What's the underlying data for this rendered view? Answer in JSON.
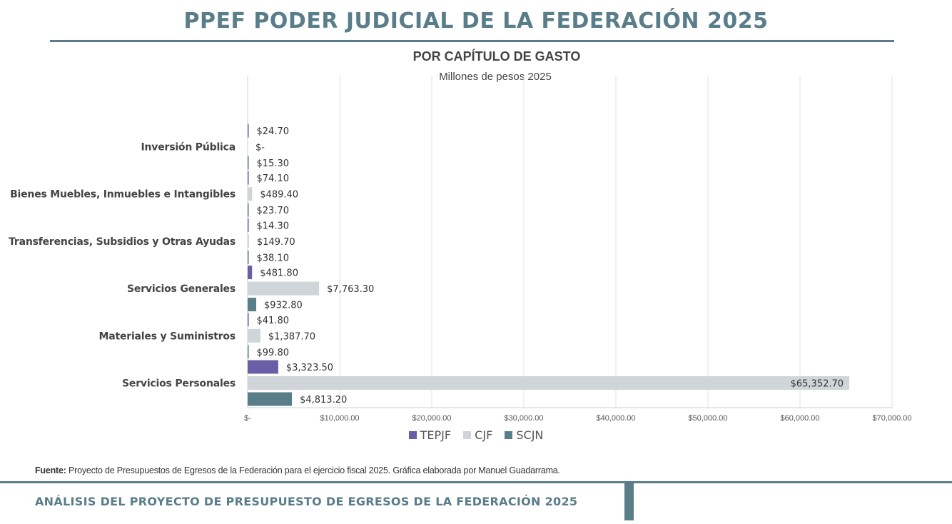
{
  "header": {
    "title": "PPEF PODER JUDICIAL DE LA FEDERACIÓN 2025"
  },
  "chart_data": {
    "type": "bar",
    "orientation": "horizontal",
    "title": "POR CAPÍTULO DE GASTO",
    "subtitle": "Millones de pesos 2025",
    "categories": [
      "Inversión Pública",
      "Bienes Muebles, Inmuebles e Intangibles",
      "Transferencias, Subsidios y Otras Ayudas",
      "Servicios Generales",
      "Materiales y Suministros",
      "Servicios Personales"
    ],
    "series": [
      {
        "name": "TEPJF",
        "color": "#6a5ea6",
        "values": [
          24.7,
          74.1,
          14.3,
          481.8,
          41.8,
          3323.5
        ],
        "labels": [
          "$24.70",
          "$74.10",
          "$14.30",
          "$481.80",
          "$41.80",
          "$3,323.50"
        ]
      },
      {
        "name": "CJF",
        "color": "#cfd5d8",
        "values": [
          0,
          489.4,
          149.7,
          7763.3,
          1387.7,
          65352.7
        ],
        "labels": [
          "$-",
          "$489.40",
          "$149.70",
          "$7,763.30",
          "$1,387.70",
          "$65,352.70"
        ]
      },
      {
        "name": "SCJN",
        "color": "#5a7d8a",
        "values": [
          15.3,
          23.7,
          38.1,
          932.8,
          99.8,
          4813.2
        ],
        "labels": [
          "$15.30",
          "$23.70",
          "$38.10",
          "$932.80",
          "$99.80",
          "$4,813.20"
        ]
      }
    ],
    "xlim": [
      0,
      70000
    ],
    "xticks": [
      0,
      10000,
      20000,
      30000,
      40000,
      50000,
      60000,
      70000
    ],
    "xtick_labels": [
      "$-",
      "$10,000.00",
      "$20,000.00",
      "$30,000.00",
      "$40,000.00",
      "$50,000.00",
      "$60,000.00",
      "$70,000.00"
    ],
    "grid": true,
    "legend": "bottom"
  },
  "source": {
    "label": "Fuente:",
    "text": " Proyecto de Presupuestos de Egresos de la Federación para el ejercicio fiscal 2025. Gráfica elaborada por Manuel Guadarrama."
  },
  "footer": {
    "text": "ANÁLISIS DEL PROYECTO DE PRESUPUESTO DE EGRESOS DE LA FEDERACIÓN 2025"
  }
}
